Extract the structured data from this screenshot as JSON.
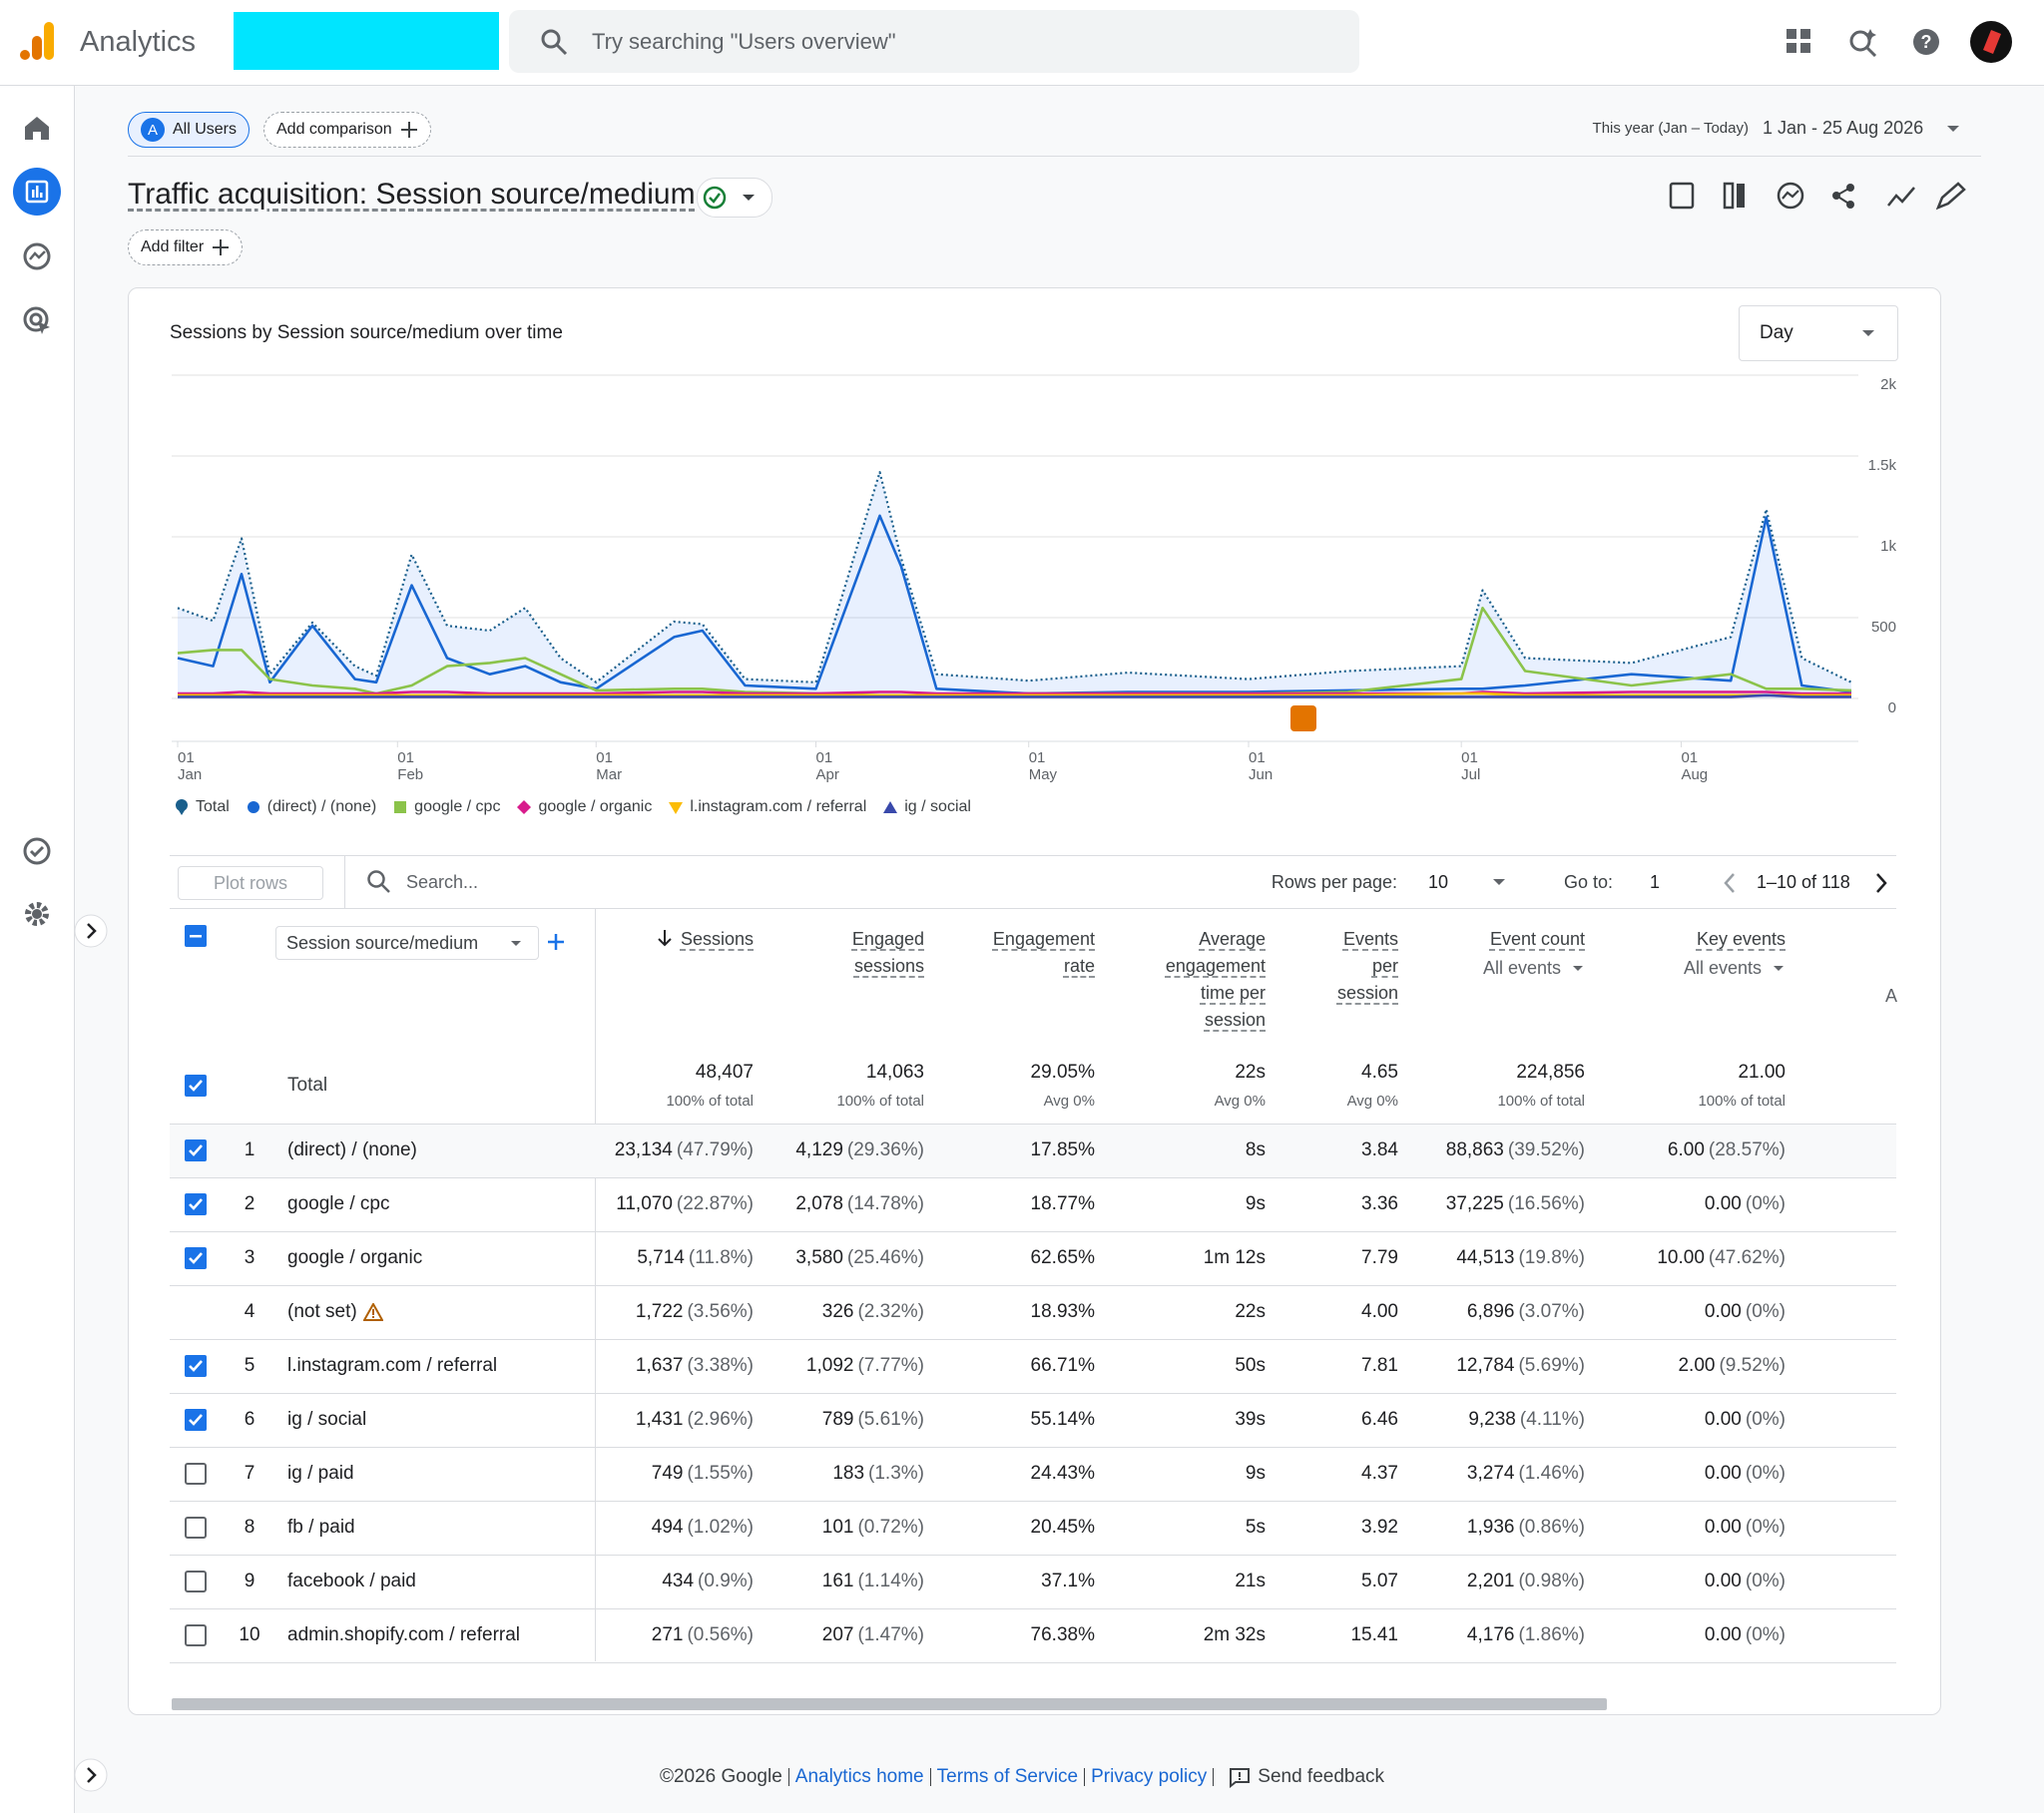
{
  "header": {
    "product": "Analytics",
    "search_placeholder": "Try searching \"Users overview\""
  },
  "toolbar": {
    "segment_badge": "A",
    "segment": "All Users",
    "add_comparison": "Add comparison",
    "date_preset": "This year (Jan – Today)",
    "date_range": "1 Jan - 25 Aug 2026"
  },
  "report": {
    "title": "Traffic acquisition: Session source/medium",
    "add_filter": "Add filter"
  },
  "chart_data": {
    "type": "line",
    "title": "Sessions by Session source/medium over time",
    "granularity": "Day",
    "x": [
      "01 Jan",
      "06 Jan",
      "10 Jan",
      "14 Jan",
      "20 Jan",
      "26 Jan",
      "29 Jan",
      "03 Feb",
      "08 Feb",
      "14 Feb",
      "19 Feb",
      "24 Feb",
      "01 Mar",
      "12 Mar",
      "16 Mar",
      "22 Mar",
      "01 Apr",
      "10 Apr",
      "13 Apr",
      "18 Apr",
      "01 May",
      "15 May",
      "01 Jun",
      "15 Jun",
      "01 Jul",
      "04 Jul",
      "10 Jul",
      "25 Jul",
      "08 Aug",
      "13 Aug",
      "18 Aug",
      "25 Aug"
    ],
    "xticks": [
      "01 Jan",
      "01 Feb",
      "01 Mar",
      "01 Apr",
      "01 May",
      "01 Jun",
      "01 Jul",
      "01 Aug"
    ],
    "ylim": [
      0,
      2000
    ],
    "yticks": [
      0,
      500,
      {
        "value": 1000,
        "label": "1k"
      },
      {
        "value": 1500,
        "label": "1.5k"
      },
      {
        "value": 2000,
        "label": "2k"
      }
    ],
    "grid": true,
    "series": [
      {
        "name": "Total",
        "color": "#1a5f8c",
        "style": "dotted",
        "area": true,
        "marker": "pin",
        "values": [
          560,
          480,
          990,
          150,
          470,
          200,
          140,
          890,
          450,
          420,
          560,
          250,
          100,
          475,
          460,
          120,
          100,
          1400,
          870,
          150,
          110,
          160,
          120,
          170,
          200,
          670,
          250,
          220,
          380,
          1170,
          250,
          100
        ]
      },
      {
        "name": "(direct) / (none)",
        "color": "#1967d2",
        "style": "solid",
        "marker": "circle",
        "values": [
          250,
          200,
          770,
          100,
          450,
          120,
          100,
          700,
          250,
          150,
          200,
          100,
          60,
          380,
          420,
          80,
          60,
          1130,
          820,
          60,
          30,
          40,
          40,
          50,
          60,
          60,
          80,
          150,
          110,
          1120,
          80,
          40
        ]
      },
      {
        "name": "google / cpc",
        "color": "#8bc34a",
        "style": "solid",
        "marker": "square",
        "values": [
          280,
          300,
          300,
          120,
          80,
          60,
          30,
          80,
          200,
          220,
          250,
          150,
          50,
          60,
          60,
          40,
          30,
          20,
          20,
          20,
          30,
          30,
          30,
          40,
          120,
          560,
          170,
          80,
          150,
          60,
          60,
          50
        ]
      },
      {
        "name": "google / organic",
        "color": "#d81b8c",
        "style": "solid",
        "marker": "diamond",
        "values": [
          30,
          30,
          40,
          30,
          30,
          30,
          30,
          40,
          40,
          30,
          30,
          30,
          30,
          40,
          40,
          30,
          30,
          40,
          40,
          30,
          30,
          30,
          30,
          30,
          30,
          40,
          30,
          40,
          40,
          40,
          30,
          30
        ]
      },
      {
        "name": "l.instagram.com / referral",
        "color": "#fbbc04",
        "style": "solid",
        "marker": "triangle-down",
        "values": [
          20,
          20,
          20,
          20,
          20,
          20,
          20,
          20,
          20,
          20,
          20,
          20,
          20,
          20,
          20,
          20,
          20,
          20,
          20,
          20,
          20,
          20,
          20,
          20,
          30,
          30,
          20,
          20,
          20,
          20,
          20,
          20
        ]
      },
      {
        "name": "ig / social",
        "color": "#3949ab",
        "style": "solid",
        "marker": "triangle",
        "values": [
          10,
          10,
          10,
          10,
          10,
          10,
          10,
          10,
          10,
          10,
          10,
          10,
          10,
          10,
          10,
          10,
          10,
          10,
          10,
          10,
          10,
          10,
          10,
          10,
          10,
          10,
          10,
          10,
          10,
          20,
          10,
          10
        ]
      }
    ]
  },
  "table": {
    "controls": {
      "plot_rows": "Plot rows",
      "search_placeholder": "Search...",
      "rows_per_page_label": "Rows per page:",
      "rows_per_page": "10",
      "go_to_label": "Go to:",
      "go_to": "1",
      "range": "1–10 of 118"
    },
    "dimension": "Session source/medium",
    "columns": [
      {
        "label": "Sessions",
        "sorted": true
      },
      {
        "label": "Engaged sessions"
      },
      {
        "label": "Engagement rate"
      },
      {
        "label": "Average engagement time per session"
      },
      {
        "label": "Events per session"
      },
      {
        "label": "Event count",
        "sub": "All events"
      },
      {
        "label": "Key events",
        "sub": "All events"
      }
    ],
    "extra_column": "A",
    "total": {
      "label": "Total",
      "checked": true,
      "cells": [
        [
          "48,407",
          "100% of total"
        ],
        [
          "14,063",
          "100% of total"
        ],
        [
          "29.05%",
          "Avg 0%"
        ],
        [
          "22s",
          "Avg 0%"
        ],
        [
          "4.65",
          "Avg 0%"
        ],
        [
          "224,856",
          "100% of total"
        ],
        [
          "21.00",
          "100% of total"
        ]
      ]
    },
    "rows": [
      {
        "rank": "1",
        "name": "(direct) / (none)",
        "checked": true,
        "cells": [
          [
            "23,134",
            "(47.79%)"
          ],
          [
            "4,129",
            "(29.36%)"
          ],
          "17.85%",
          "8s",
          "3.84",
          [
            "88,863",
            "(39.52%)"
          ],
          [
            "6.00",
            "(28.57%)"
          ]
        ]
      },
      {
        "rank": "2",
        "name": "google / cpc",
        "checked": true,
        "cells": [
          [
            "11,070",
            "(22.87%)"
          ],
          [
            "2,078",
            "(14.78%)"
          ],
          "18.77%",
          "9s",
          "3.36",
          [
            "37,225",
            "(16.56%)"
          ],
          [
            "0.00",
            "(0%)"
          ]
        ]
      },
      {
        "rank": "3",
        "name": "google / organic",
        "checked": true,
        "cells": [
          [
            "5,714",
            "(11.8%)"
          ],
          [
            "3,580",
            "(25.46%)"
          ],
          "62.65%",
          "1m 12s",
          "7.79",
          [
            "44,513",
            "(19.8%)"
          ],
          [
            "10.00",
            "(47.62%)"
          ]
        ]
      },
      {
        "rank": "4",
        "name": "(not set)",
        "checked": null,
        "warning": true,
        "cells": [
          [
            "1,722",
            "(3.56%)"
          ],
          [
            "326",
            "(2.32%)"
          ],
          "18.93%",
          "22s",
          "4.00",
          [
            "6,896",
            "(3.07%)"
          ],
          [
            "0.00",
            "(0%)"
          ]
        ]
      },
      {
        "rank": "5",
        "name": "l.instagram.com / referral",
        "checked": true,
        "cells": [
          [
            "1,637",
            "(3.38%)"
          ],
          [
            "1,092",
            "(7.77%)"
          ],
          "66.71%",
          "50s",
          "7.81",
          [
            "12,784",
            "(5.69%)"
          ],
          [
            "2.00",
            "(9.52%)"
          ]
        ]
      },
      {
        "rank": "6",
        "name": "ig / social",
        "checked": true,
        "cells": [
          [
            "1,431",
            "(2.96%)"
          ],
          [
            "789",
            "(5.61%)"
          ],
          "55.14%",
          "39s",
          "6.46",
          [
            "9,238",
            "(4.11%)"
          ],
          [
            "0.00",
            "(0%)"
          ]
        ]
      },
      {
        "rank": "7",
        "name": "ig / paid",
        "checked": false,
        "cells": [
          [
            "749",
            "(1.55%)"
          ],
          [
            "183",
            "(1.3%)"
          ],
          "24.43%",
          "9s",
          "4.37",
          [
            "3,274",
            "(1.46%)"
          ],
          [
            "0.00",
            "(0%)"
          ]
        ]
      },
      {
        "rank": "8",
        "name": "fb / paid",
        "checked": false,
        "cells": [
          [
            "494",
            "(1.02%)"
          ],
          [
            "101",
            "(0.72%)"
          ],
          "20.45%",
          "5s",
          "3.92",
          [
            "1,936",
            "(0.86%)"
          ],
          [
            "0.00",
            "(0%)"
          ]
        ]
      },
      {
        "rank": "9",
        "name": "facebook / paid",
        "checked": false,
        "cells": [
          [
            "434",
            "(0.9%)"
          ],
          [
            "161",
            "(1.14%)"
          ],
          "37.1%",
          "21s",
          "5.07",
          [
            "2,201",
            "(0.98%)"
          ],
          [
            "0.00",
            "(0%)"
          ]
        ]
      },
      {
        "rank": "10",
        "name": "admin.shopify.com / referral",
        "checked": false,
        "cells": [
          [
            "271",
            "(0.56%)"
          ],
          [
            "207",
            "(1.47%)"
          ],
          "76.38%",
          "2m 32s",
          "15.41",
          [
            "4,176",
            "(1.86%)"
          ],
          [
            "0.00",
            "(0%)"
          ]
        ]
      }
    ]
  },
  "footer": {
    "copyright": "©2026 Google",
    "links": [
      "Analytics home",
      "Terms of Service",
      "Privacy policy"
    ],
    "feedback": "Send feedback"
  }
}
